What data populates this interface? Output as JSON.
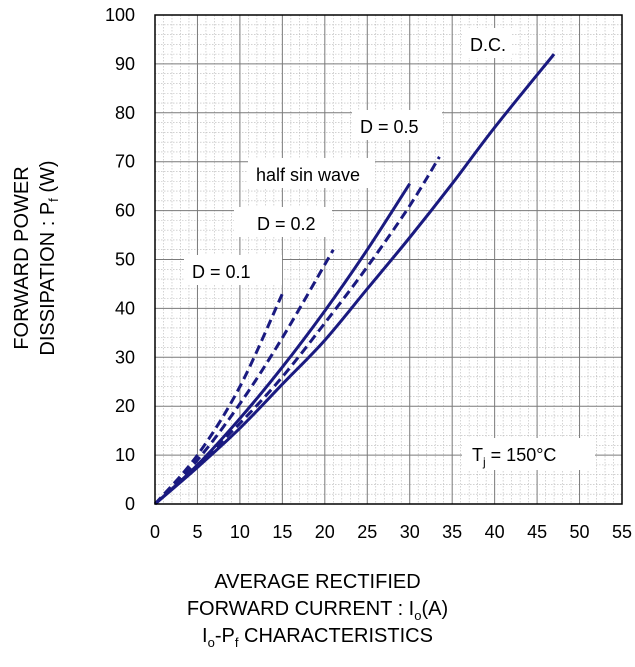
{
  "chart_data": {
    "type": "line",
    "title": "Iₒ-Pƒ CHARACTERISTICS",
    "xlabel": "AVERAGE RECTIFIED FORWARD CURRENT : Iₒ(A)",
    "ylabel": "FORWARD POWER DISSIPATION : Pƒ (W)",
    "xlim": [
      0,
      55
    ],
    "ylim": [
      0,
      100
    ],
    "x_ticks": [
      "0",
      "5",
      "10",
      "15",
      "20",
      "25",
      "30",
      "35",
      "40",
      "45",
      "50",
      "55"
    ],
    "y_ticks": [
      "0",
      "10",
      "20",
      "30",
      "40",
      "50",
      "60",
      "70",
      "80",
      "90",
      "100"
    ],
    "grid": true,
    "series": [
      {
        "name": "D.C.",
        "style": "solid",
        "x": [
          0,
          5,
          10,
          15,
          20,
          25,
          30,
          35,
          40,
          47
        ],
        "y": [
          0,
          7.5,
          15.5,
          24.5,
          33.5,
          44,
          54.5,
          65.5,
          77,
          92
        ]
      },
      {
        "name": "half sin wave",
        "style": "solid",
        "x": [
          0,
          5,
          10,
          15,
          20,
          25,
          30
        ],
        "y": [
          0,
          8,
          17.5,
          28,
          39.5,
          52,
          65.5
        ]
      },
      {
        "name": "D = 0.5",
        "style": "dashed",
        "x": [
          0,
          5,
          10,
          15,
          20,
          25,
          30,
          33.5
        ],
        "y": [
          0,
          8,
          16.5,
          26,
          37,
          48.5,
          61,
          71
        ]
      },
      {
        "name": "D = 0.2",
        "style": "dashed",
        "x": [
          0,
          5,
          10,
          15,
          21
        ],
        "y": [
          0,
          9,
          20.5,
          34,
          52
        ]
      },
      {
        "name": "D = 0.1",
        "style": "dashed",
        "x": [
          0,
          5,
          10,
          15
        ],
        "y": [
          0,
          10,
          24,
          43
        ]
      }
    ],
    "annotations": {
      "dc": "D.C.",
      "d05": "D = 0.5",
      "half": "half sin wave",
      "d02": "D = 0.2",
      "d01": "D = 0.1",
      "tj_prefix": "T",
      "tj_sub": "j",
      "tj_suffix": " = 150°C"
    },
    "axis_text": {
      "y_line1": "FORWARD POWER",
      "y_line2_a": "DISSIPATION : P",
      "y_line2_sub": "f",
      "y_line2_b": " (W)",
      "x_line1": "AVERAGE RECTIFIED",
      "x_line2_a": "FORWARD CURRENT : I",
      "x_line2_sub": "o",
      "x_line2_b": "(A)",
      "x_line3_a": "I",
      "x_line3_sub1": "o",
      "x_line3_b": "-P",
      "x_line3_sub2": "f",
      "x_line3_c": " CHARACTERISTICS"
    },
    "colors": {
      "curve": "#1a1a80",
      "grid_minor": "#b8b8b8",
      "grid_major": "#7a7a7a",
      "frame": "#000000"
    }
  }
}
